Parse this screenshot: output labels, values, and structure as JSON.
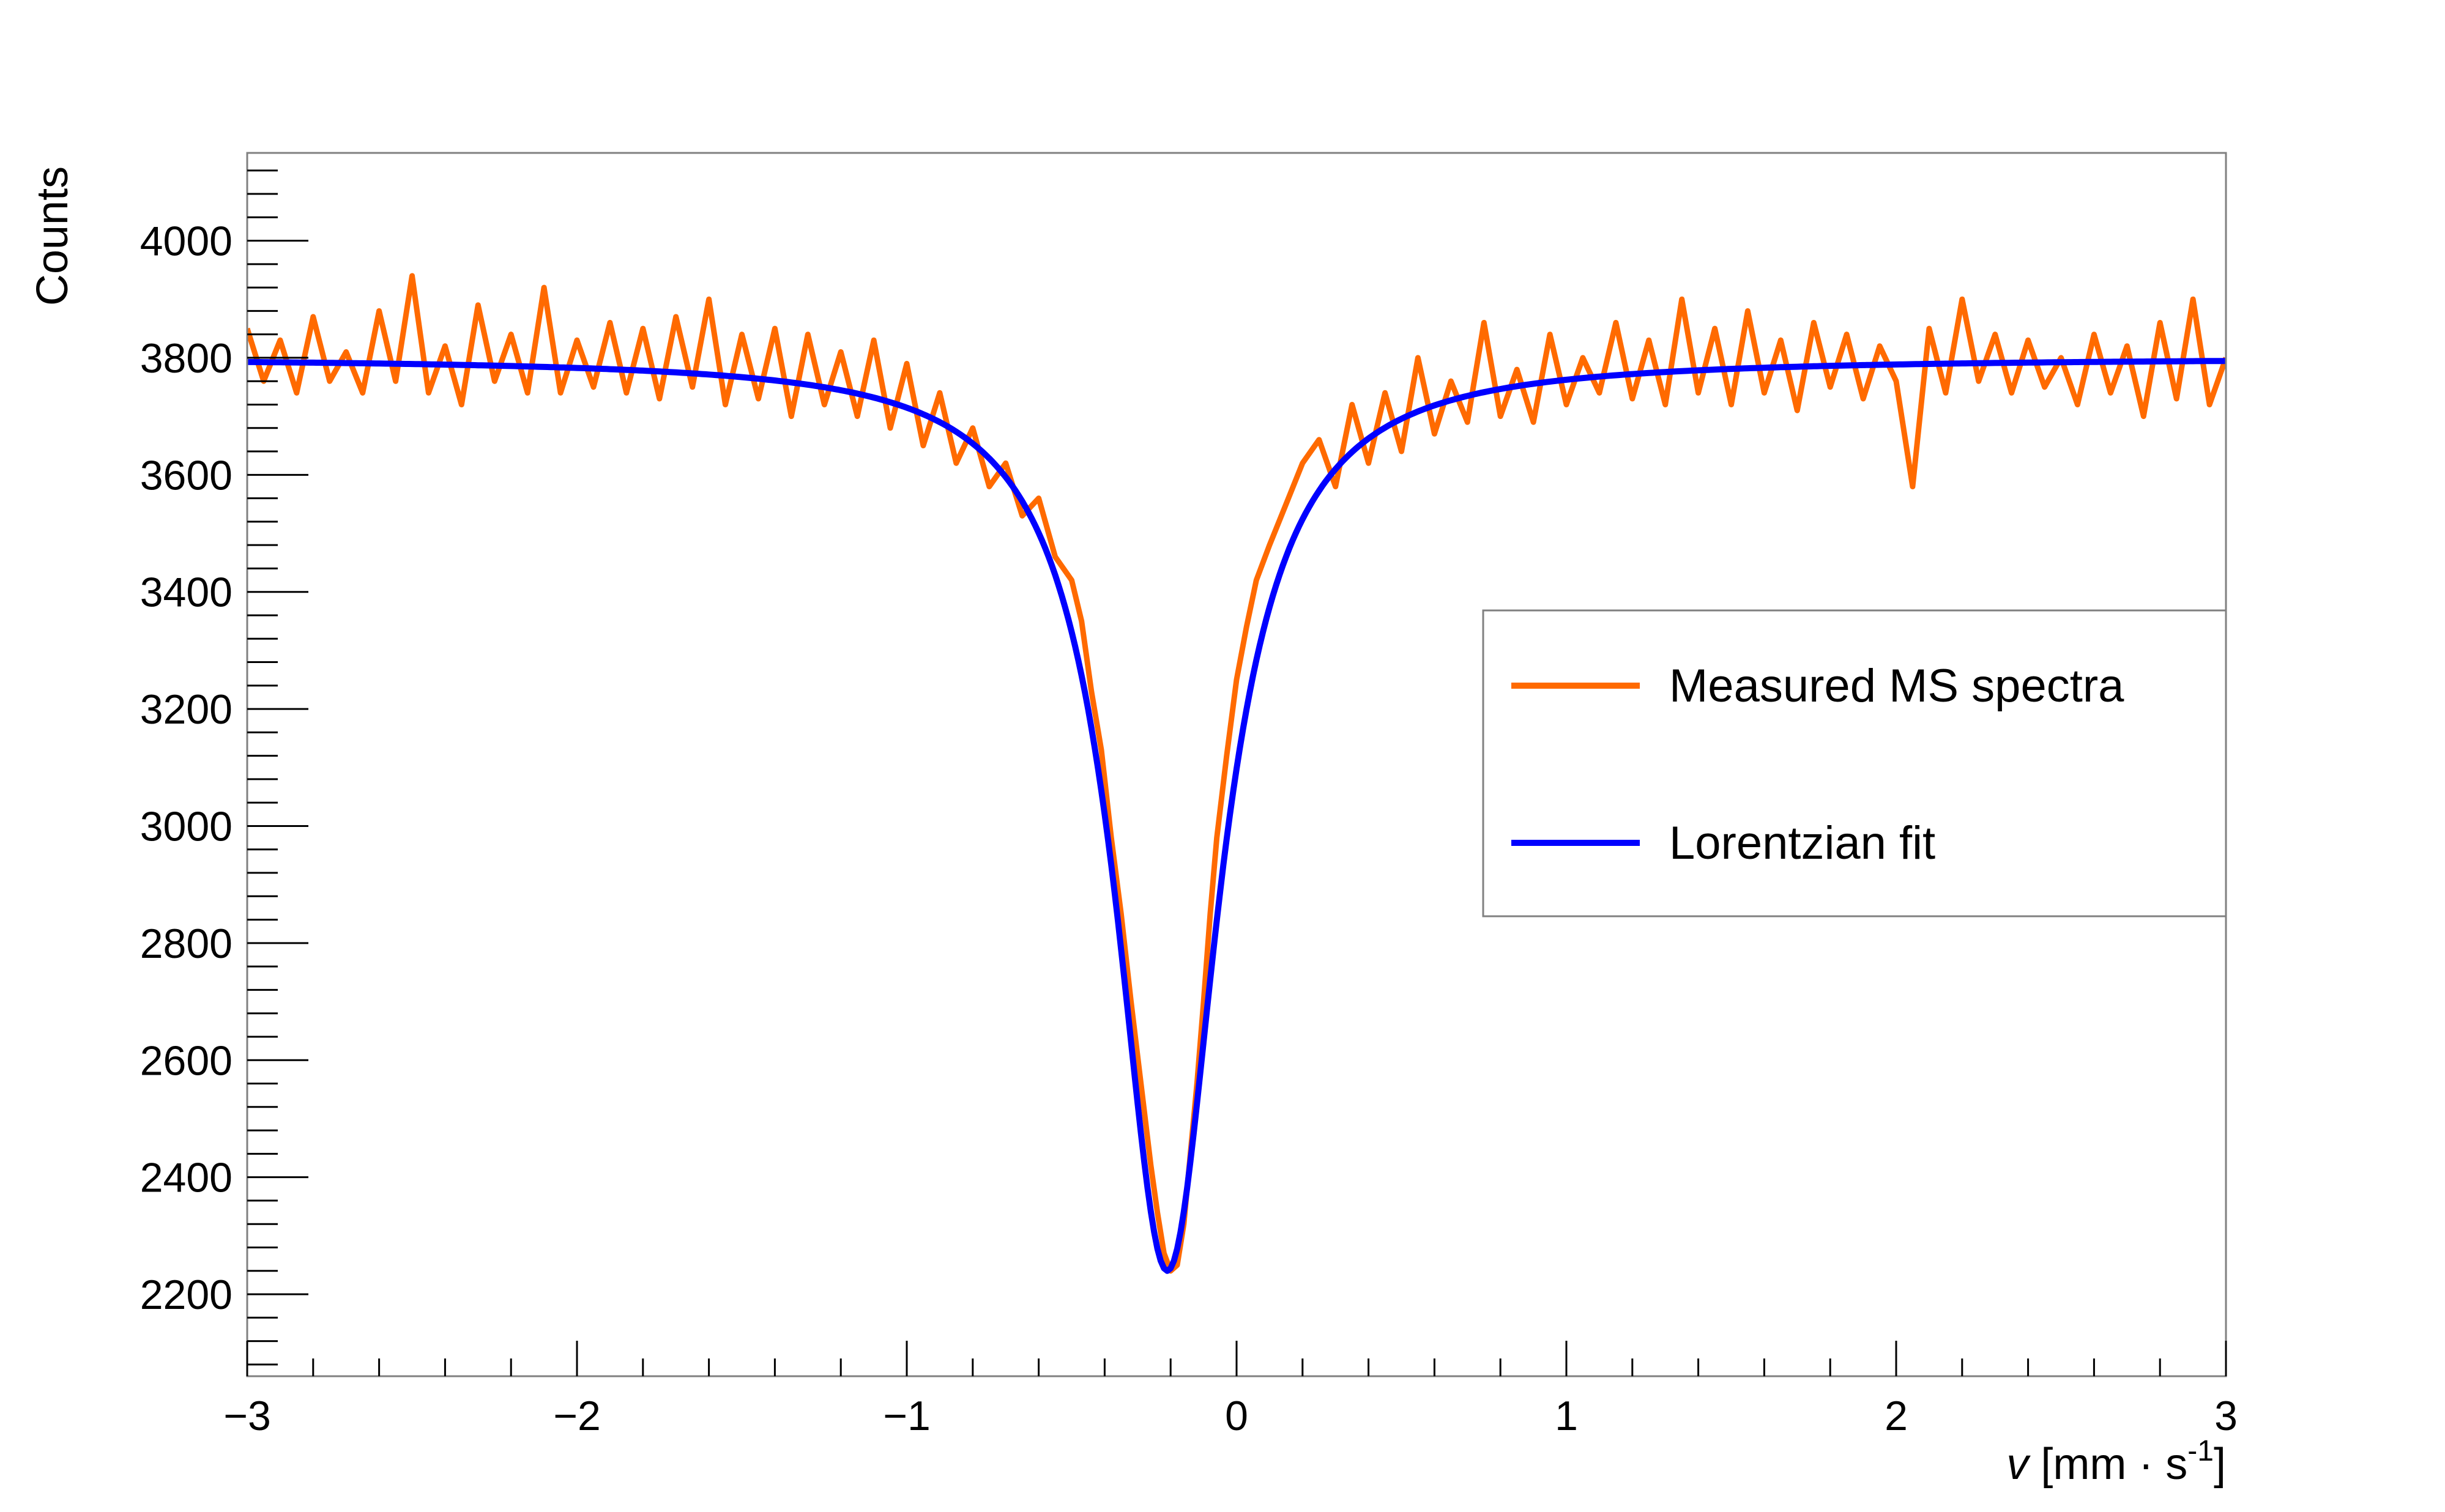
{
  "chart_data": {
    "type": "line",
    "title": "",
    "xlabel": {
      "var": "v",
      "unit_open": " [mm · s",
      "unit_exp": "-1",
      "unit_close": "]"
    },
    "ylabel": "Counts",
    "xlim": [
      -3,
      3
    ],
    "ylim": [
      2060,
      4150
    ],
    "x_ticks": [
      -3,
      -2,
      -1,
      0,
      1,
      2,
      3
    ],
    "x_tick_labels": [
      "−3",
      "−2",
      "−1",
      "0",
      "1",
      "2",
      "3"
    ],
    "y_ticks": [
      2200,
      2400,
      2600,
      2800,
      3000,
      3200,
      3400,
      3600,
      3800,
      4000
    ],
    "y_tick_labels": [
      "2200",
      "2400",
      "2600",
      "2800",
      "3000",
      "3200",
      "3400",
      "3600",
      "3800",
      "4000"
    ],
    "grid": false,
    "legend_position": "right",
    "series": [
      {
        "name": "Measured MS spectra",
        "color": "#ff6a00",
        "points": [
          [
            -3.0,
            3850
          ],
          [
            -2.95,
            3760
          ],
          [
            -2.9,
            3830
          ],
          [
            -2.85,
            3740
          ],
          [
            -2.8,
            3870
          ],
          [
            -2.75,
            3760
          ],
          [
            -2.7,
            3810
          ],
          [
            -2.65,
            3740
          ],
          [
            -2.6,
            3880
          ],
          [
            -2.55,
            3760
          ],
          [
            -2.5,
            3940
          ],
          [
            -2.45,
            3740
          ],
          [
            -2.4,
            3820
          ],
          [
            -2.35,
            3720
          ],
          [
            -2.3,
            3890
          ],
          [
            -2.25,
            3760
          ],
          [
            -2.2,
            3840
          ],
          [
            -2.15,
            3740
          ],
          [
            -2.1,
            3920
          ],
          [
            -2.05,
            3740
          ],
          [
            -2.0,
            3830
          ],
          [
            -1.95,
            3750
          ],
          [
            -1.9,
            3860
          ],
          [
            -1.85,
            3740
          ],
          [
            -1.8,
            3850
          ],
          [
            -1.75,
            3730
          ],
          [
            -1.7,
            3870
          ],
          [
            -1.65,
            3750
          ],
          [
            -1.6,
            3900
          ],
          [
            -1.55,
            3720
          ],
          [
            -1.5,
            3840
          ],
          [
            -1.45,
            3730
          ],
          [
            -1.4,
            3850
          ],
          [
            -1.35,
            3700
          ],
          [
            -1.3,
            3840
          ],
          [
            -1.25,
            3720
          ],
          [
            -1.2,
            3810
          ],
          [
            -1.15,
            3700
          ],
          [
            -1.1,
            3830
          ],
          [
            -1.05,
            3680
          ],
          [
            -1.0,
            3790
          ],
          [
            -0.95,
            3650
          ],
          [
            -0.9,
            3740
          ],
          [
            -0.85,
            3620
          ],
          [
            -0.8,
            3680
          ],
          [
            -0.75,
            3580
          ],
          [
            -0.7,
            3620
          ],
          [
            -0.65,
            3530
          ],
          [
            -0.6,
            3560
          ],
          [
            -0.55,
            3460
          ],
          [
            -0.5,
            3420
          ],
          [
            -0.47,
            3350
          ],
          [
            -0.44,
            3230
          ],
          [
            -0.41,
            3130
          ],
          [
            -0.38,
            2980
          ],
          [
            -0.35,
            2850
          ],
          [
            -0.32,
            2700
          ],
          [
            -0.29,
            2560
          ],
          [
            -0.26,
            2420
          ],
          [
            -0.24,
            2340
          ],
          [
            -0.22,
            2270
          ],
          [
            -0.2,
            2240
          ],
          [
            -0.18,
            2250
          ],
          [
            -0.16,
            2320
          ],
          [
            -0.14,
            2440
          ],
          [
            -0.12,
            2560
          ],
          [
            -0.1,
            2700
          ],
          [
            -0.08,
            2850
          ],
          [
            -0.06,
            2980
          ],
          [
            -0.03,
            3120
          ],
          [
            0.0,
            3250
          ],
          [
            0.03,
            3340
          ],
          [
            0.06,
            3420
          ],
          [
            0.1,
            3480
          ],
          [
            0.15,
            3550
          ],
          [
            0.2,
            3620
          ],
          [
            0.25,
            3660
          ],
          [
            0.3,
            3580
          ],
          [
            0.35,
            3720
          ],
          [
            0.4,
            3620
          ],
          [
            0.45,
            3740
          ],
          [
            0.5,
            3640
          ],
          [
            0.55,
            3800
          ],
          [
            0.6,
            3670
          ],
          [
            0.65,
            3760
          ],
          [
            0.7,
            3690
          ],
          [
            0.75,
            3860
          ],
          [
            0.8,
            3700
          ],
          [
            0.85,
            3780
          ],
          [
            0.9,
            3690
          ],
          [
            0.95,
            3840
          ],
          [
            1.0,
            3720
          ],
          [
            1.05,
            3800
          ],
          [
            1.1,
            3740
          ],
          [
            1.15,
            3860
          ],
          [
            1.2,
            3730
          ],
          [
            1.25,
            3830
          ],
          [
            1.3,
            3720
          ],
          [
            1.35,
            3900
          ],
          [
            1.4,
            3740
          ],
          [
            1.45,
            3850
          ],
          [
            1.5,
            3720
          ],
          [
            1.55,
            3880
          ],
          [
            1.6,
            3740
          ],
          [
            1.65,
            3830
          ],
          [
            1.7,
            3710
          ],
          [
            1.75,
            3860
          ],
          [
            1.8,
            3750
          ],
          [
            1.85,
            3840
          ],
          [
            1.9,
            3730
          ],
          [
            1.95,
            3820
          ],
          [
            2.0,
            3760
          ],
          [
            2.05,
            3580
          ],
          [
            2.1,
            3850
          ],
          [
            2.15,
            3740
          ],
          [
            2.2,
            3900
          ],
          [
            2.25,
            3760
          ],
          [
            2.3,
            3840
          ],
          [
            2.35,
            3740
          ],
          [
            2.4,
            3830
          ],
          [
            2.45,
            3750
          ],
          [
            2.5,
            3800
          ],
          [
            2.55,
            3720
          ],
          [
            2.6,
            3840
          ],
          [
            2.65,
            3740
          ],
          [
            2.7,
            3820
          ],
          [
            2.75,
            3700
          ],
          [
            2.8,
            3860
          ],
          [
            2.85,
            3730
          ],
          [
            2.9,
            3900
          ],
          [
            2.95,
            3720
          ],
          [
            3.0,
            3800
          ]
        ]
      },
      {
        "name": "Lorentzian fit",
        "color": "#0000ff",
        "baseline": 3800,
        "depth": 1560,
        "center": -0.21,
        "hwhm": 0.19
      }
    ]
  }
}
